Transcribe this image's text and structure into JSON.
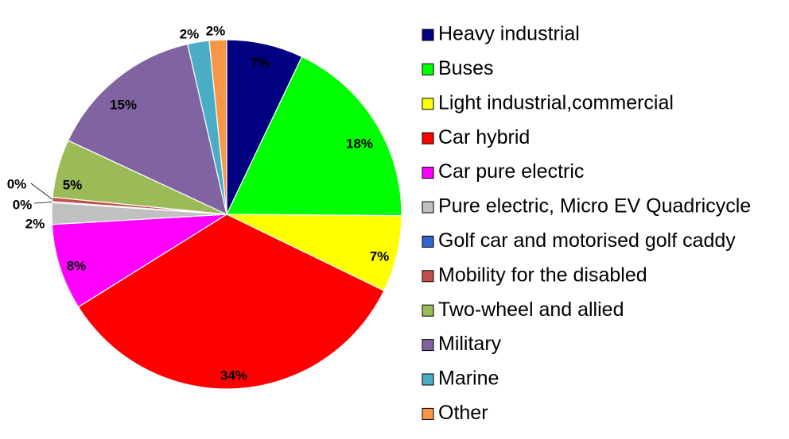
{
  "chart_data": {
    "type": "pie",
    "title": "",
    "start_angle_deg": 0,
    "direction": "clockwise",
    "legend_position": "right",
    "slices": [
      {
        "name": "Heavy industrial",
        "value": 7.1,
        "label": "7%",
        "color": "#000080"
      },
      {
        "name": "Buses",
        "value": 18.1,
        "label": "18%",
        "color": "#00ff00"
      },
      {
        "name": "Light industrial,commercial",
        "value": 7.1,
        "label": "7%",
        "color": "#ffff00"
      },
      {
        "name": "Car hybrid",
        "value": 34.0,
        "label": "34%",
        "color": "#ff0000"
      },
      {
        "name": "Car pure electric",
        "value": 8.0,
        "label": "8%",
        "color": "#ff00ff"
      },
      {
        "name": "Pure electric, Micro EV Quadricycle",
        "value": 2.0,
        "label": "2%",
        "color": "#c0c0c0"
      },
      {
        "name": "Golf car and motorised golf caddy",
        "value": 0.1,
        "label": "0%",
        "color": "#3366cc"
      },
      {
        "name": "Mobility for the disabled",
        "value": 0.4,
        "label": "0%",
        "color": "#c0504d"
      },
      {
        "name": "Two-wheel and allied",
        "value": 5.4,
        "label": "5%",
        "color": "#9bbb59"
      },
      {
        "name": "Military",
        "value": 14.5,
        "label": "15%",
        "color": "#8064a2"
      },
      {
        "name": "Marine",
        "value": 2.0,
        "label": "2%",
        "color": "#4bacc6"
      },
      {
        "name": "Other",
        "value": 1.6,
        "label": "2%",
        "color": "#f79646"
      }
    ]
  }
}
